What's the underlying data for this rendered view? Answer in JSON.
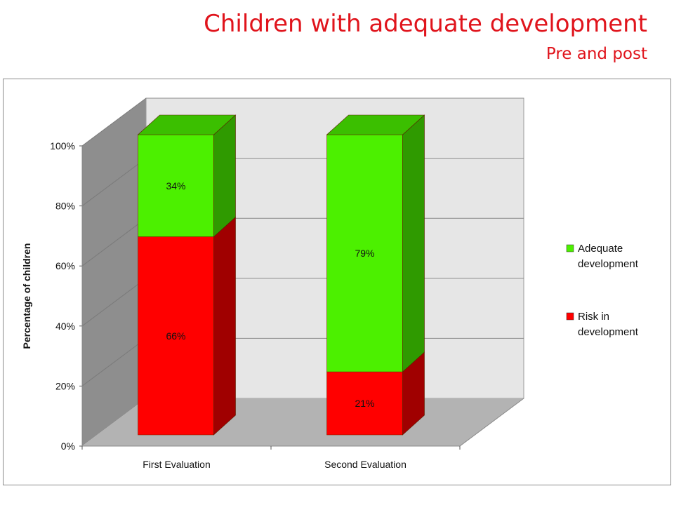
{
  "chart_data": {
    "type": "bar",
    "stacked": true,
    "three_d": true,
    "title": "Children with adequate development",
    "subtitle": "Pre and post",
    "categories": [
      "First Evaluation",
      "Second Evaluation"
    ],
    "series": [
      {
        "name": "Risk in development",
        "values": [
          66,
          21
        ],
        "labels": [
          "66%",
          "21%"
        ],
        "color": "#ff0000",
        "side_color": "#a00000",
        "top_color": "#c00000"
      },
      {
        "name": "Adequate development",
        "values": [
          34,
          79
        ],
        "labels": [
          "34%",
          "79%"
        ],
        "color": "#4cf000",
        "side_color": "#2f9a00",
        "top_color": "#3bbf00"
      }
    ],
    "ylabel": "Percentage of children",
    "xlabel": "",
    "ylim": [
      0,
      100
    ],
    "yticks": [
      "0%",
      "20%",
      "40%",
      "60%",
      "80%",
      "100%"
    ],
    "grid": true,
    "legend_position": "right",
    "legend": [
      "Adequate development",
      "Risk in development"
    ]
  }
}
